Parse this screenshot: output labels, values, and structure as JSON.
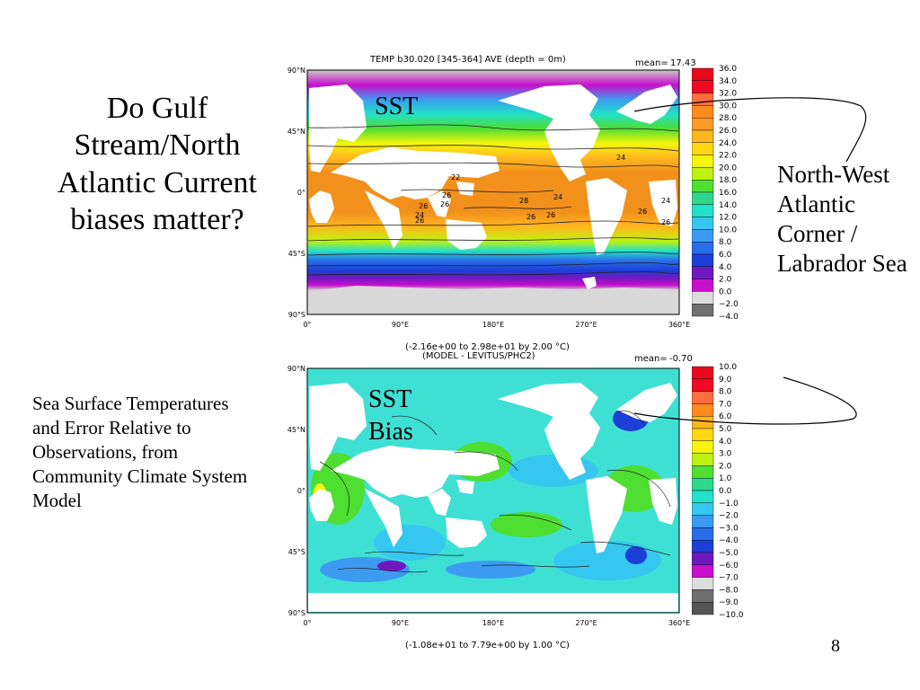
{
  "slide": {
    "title": "Do Gulf Stream/North Atlantic Current biases matter?",
    "caption": "Sea Surface Temperatures and Error Relative to Observations, from Community Climate System Model",
    "callout": "North-West Atlantic Corner / Labrador Sea",
    "page_number": "8"
  },
  "top_map": {
    "header": "TEMP b30.020 [345-364] AVE (depth = 0m)",
    "mean_label": "mean=",
    "mean_value": "17.43",
    "overlay_label": "SST",
    "footer": "(-2.16e+00 to 2.98e+01 by 2.00 °C)",
    "lat_ticks": [
      "90°N",
      "45°N",
      "0°",
      "45°S",
      "90°S"
    ],
    "lon_ticks": [
      "0°",
      "90°E",
      "180°E",
      "270°E",
      "360°E"
    ],
    "contour_labels": [
      "26",
      "24",
      "22",
      "26",
      "28",
      "26",
      "26",
      "24",
      "26",
      "26",
      "24",
      "26",
      "24",
      "26"
    ],
    "colorbar": {
      "labels": [
        "36.0",
        "34.0",
        "32.0",
        "30.0",
        "28.0",
        "26.0",
        "24.0",
        "22.0",
        "20.0",
        "18.0",
        "16.0",
        "14.0",
        "12.0",
        "10.0",
        "8.0",
        "6.0",
        "4.0",
        "2.0",
        "0.0",
        "−2.0",
        "−4.0"
      ],
      "colors": [
        "#e8091b",
        "#f20a24",
        "#fd6e3f",
        "#ff8a1d",
        "#ff9b27",
        "#ffb61f",
        "#fcd713",
        "#f5f50c",
        "#bff20e",
        "#4fde32",
        "#2ed88a",
        "#22e0c9",
        "#35c7f0",
        "#3c9bf0",
        "#2a6de8",
        "#1c3fd8",
        "#7018c0",
        "#c80fcc",
        "#dcdcdc",
        "#707070"
      ]
    }
  },
  "bottom_map": {
    "header": "(MODEL - LEVITUS/PHC2)",
    "mean_label": "mean=",
    "mean_value": "-0.70",
    "overlay_label_1": "SST",
    "overlay_label_2": "Bias",
    "footer": "(-1.08e+01 to 7.79e+00 by 1.00 °C)",
    "lat_ticks": [
      "90°N",
      "45°N",
      "0°",
      "45°S",
      "90°S"
    ],
    "lon_ticks": [
      "0°",
      "90°E",
      "180°E",
      "270°E",
      "360°E"
    ],
    "colorbar": {
      "labels": [
        "10.0",
        "9.0",
        "8.0",
        "7.0",
        "6.0",
        "5.0",
        "4.0",
        "3.0",
        "2.0",
        "1.0",
        "0.0",
        "−1.0",
        "−2.0",
        "−3.0",
        "−4.0",
        "−5.0",
        "−6.0",
        "−7.0",
        "−8.0",
        "−9.0",
        "−10.0"
      ],
      "colors": [
        "#e8091b",
        "#f20a24",
        "#fd6e3f",
        "#ff8a1d",
        "#ffb61f",
        "#fcd713",
        "#f5f50c",
        "#bff20e",
        "#4fde32",
        "#2ed88a",
        "#22e0c9",
        "#35c7f0",
        "#3c9bf0",
        "#2a6de8",
        "#1c3fd8",
        "#7018c0",
        "#c80fcc",
        "#dcdcdc",
        "#707070",
        "#555555"
      ]
    }
  }
}
